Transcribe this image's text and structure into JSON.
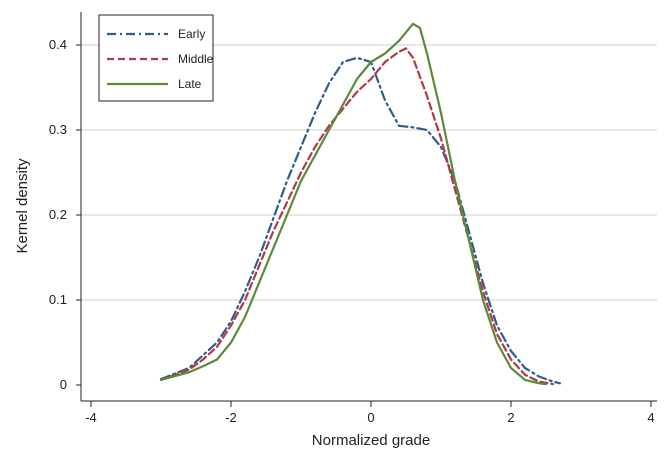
{
  "chart_data": {
    "type": "line",
    "xlabel": "Normalized grade",
    "ylabel": "Kernel density",
    "xlim": [
      -4,
      4
    ],
    "ylim": [
      0,
      0.43
    ],
    "x_ticks": [
      "-4",
      "-2",
      "0",
      "2",
      "4"
    ],
    "y_ticks": [
      "0",
      "0.1",
      "0.2",
      "0.3",
      "0.4"
    ],
    "grid": "horizontal",
    "legend_position": "top-left",
    "series": [
      {
        "name": "Early",
        "color": "#2f5d8a",
        "dash": "dash-dot",
        "x": [
          -3.0,
          -2.6,
          -2.4,
          -2.2,
          -2.0,
          -1.8,
          -1.6,
          -1.4,
          -1.2,
          -1.0,
          -0.8,
          -0.6,
          -0.4,
          -0.2,
          0.0,
          0.2,
          0.4,
          0.6,
          0.8,
          1.0,
          1.2,
          1.4,
          1.6,
          1.8,
          2.0,
          2.2,
          2.4,
          2.6,
          2.7
        ],
        "y": [
          0.007,
          0.02,
          0.035,
          0.05,
          0.075,
          0.11,
          0.15,
          0.195,
          0.24,
          0.28,
          0.32,
          0.355,
          0.38,
          0.385,
          0.38,
          0.335,
          0.305,
          0.303,
          0.3,
          0.28,
          0.24,
          0.18,
          0.12,
          0.07,
          0.04,
          0.02,
          0.01,
          0.004,
          0.002
        ]
      },
      {
        "name": "Middle",
        "color": "#b0394a",
        "dash": "dashed",
        "x": [
          -3.0,
          -2.6,
          -2.4,
          -2.2,
          -2.0,
          -1.8,
          -1.6,
          -1.4,
          -1.2,
          -1.0,
          -0.8,
          -0.6,
          -0.4,
          -0.2,
          0.0,
          0.2,
          0.4,
          0.5,
          0.6,
          0.8,
          1.0,
          1.2,
          1.4,
          1.6,
          1.8,
          2.0,
          2.2,
          2.4,
          2.6
        ],
        "y": [
          0.006,
          0.018,
          0.03,
          0.045,
          0.07,
          0.1,
          0.14,
          0.18,
          0.215,
          0.25,
          0.28,
          0.305,
          0.325,
          0.345,
          0.36,
          0.38,
          0.392,
          0.396,
          0.385,
          0.34,
          0.29,
          0.23,
          0.17,
          0.11,
          0.06,
          0.03,
          0.012,
          0.004,
          0.001
        ]
      },
      {
        "name": "Late",
        "color": "#5b8a3a",
        "dash": "solid",
        "x": [
          -3.0,
          -2.6,
          -2.4,
          -2.2,
          -2.0,
          -1.8,
          -1.6,
          -1.4,
          -1.2,
          -1.0,
          -0.8,
          -0.6,
          -0.4,
          -0.2,
          0.0,
          0.2,
          0.4,
          0.6,
          0.7,
          0.8,
          1.0,
          1.2,
          1.4,
          1.6,
          1.8,
          2.0,
          2.2,
          2.4,
          2.5
        ],
        "y": [
          0.006,
          0.015,
          0.022,
          0.03,
          0.05,
          0.08,
          0.12,
          0.16,
          0.2,
          0.24,
          0.27,
          0.3,
          0.33,
          0.36,
          0.38,
          0.39,
          0.405,
          0.425,
          0.42,
          0.39,
          0.32,
          0.24,
          0.17,
          0.1,
          0.05,
          0.02,
          0.006,
          0.002,
          0.001
        ]
      }
    ]
  }
}
